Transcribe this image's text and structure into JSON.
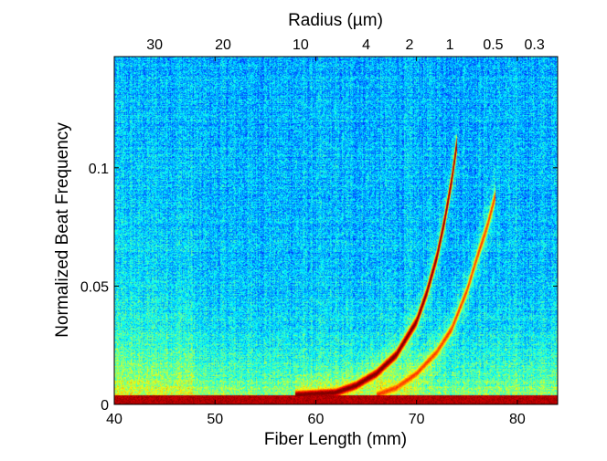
{
  "chart_data": {
    "type": "heatmap",
    "title": "",
    "xlabel": "Fiber Length (mm)",
    "ylabel": "Normalized Beat Frequency",
    "x2label": "Radius (µm)",
    "xlim": [
      40,
      84
    ],
    "ylim": [
      0,
      0.147
    ],
    "x_ticks": [
      40,
      50,
      60,
      70,
      80
    ],
    "y_ticks": [
      0,
      0.05,
      0.1
    ],
    "y_tick_labels": [
      "0",
      "0.05",
      "0.1"
    ],
    "top_ticks": [
      {
        "label": "30",
        "x": 44.0
      },
      {
        "label": "20",
        "x": 50.8
      },
      {
        "label": "10",
        "x": 58.5
      },
      {
        "label": "4",
        "x": 65.0
      },
      {
        "label": "2",
        "x": 69.3
      },
      {
        "label": "1",
        "x": 73.3
      },
      {
        "label": "0.5",
        "x": 77.6
      },
      {
        "label": "0.3",
        "x": 81.7
      }
    ],
    "colormap": "jet",
    "background_level": 0.3,
    "features": [
      {
        "name": "dc-band",
        "kind": "band",
        "y": 0.0015,
        "intensity": 0.95
      },
      {
        "name": "primary-curve",
        "kind": "curve",
        "points": [
          [
            58,
            0.004
          ],
          [
            62,
            0.005
          ],
          [
            64,
            0.008
          ],
          [
            66,
            0.013
          ],
          [
            68,
            0.021
          ],
          [
            70,
            0.035
          ],
          [
            71,
            0.047
          ],
          [
            72,
            0.062
          ],
          [
            72.8,
            0.078
          ],
          [
            73.5,
            0.095
          ],
          [
            74,
            0.11
          ]
        ],
        "intensity": 0.9
      },
      {
        "name": "secondary-curve",
        "kind": "curve",
        "points": [
          [
            66,
            0.004
          ],
          [
            68,
            0.007
          ],
          [
            70,
            0.013
          ],
          [
            72,
            0.022
          ],
          [
            73.5,
            0.032
          ],
          [
            75,
            0.048
          ],
          [
            76,
            0.062
          ],
          [
            77,
            0.075
          ],
          [
            77.8,
            0.088
          ]
        ],
        "intensity": 0.7
      }
    ]
  }
}
